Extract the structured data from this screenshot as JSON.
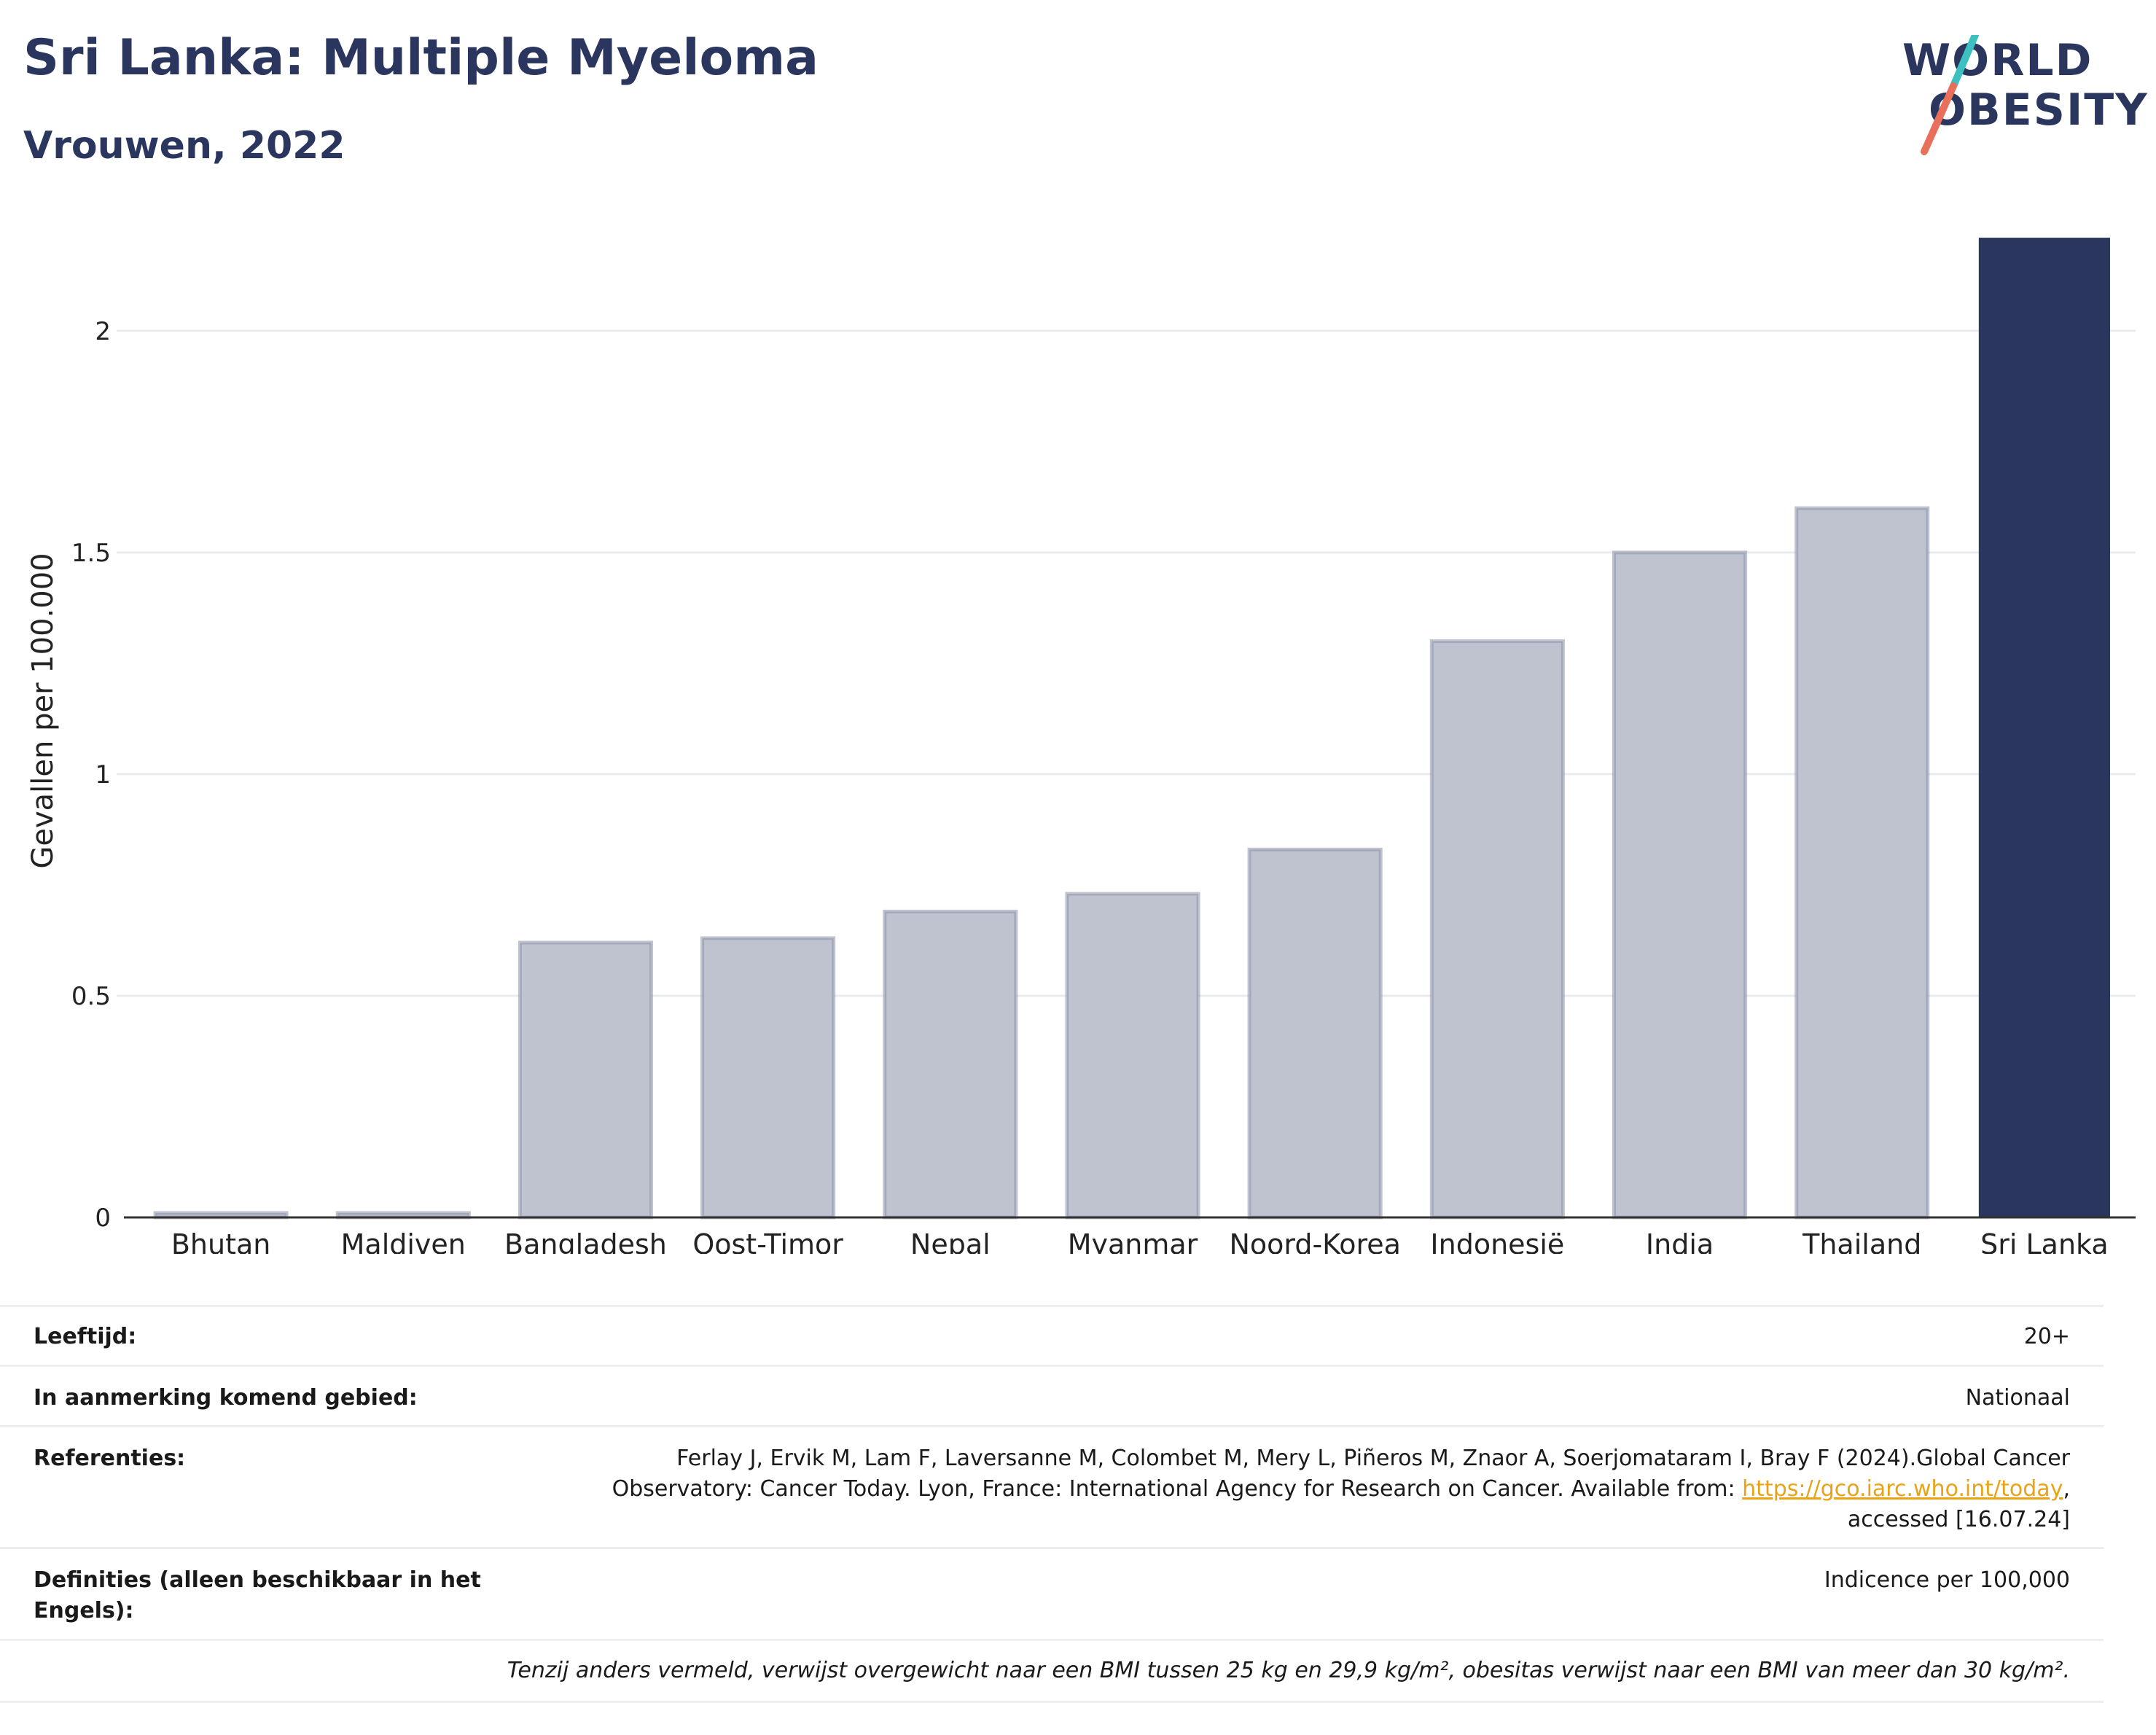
{
  "header": {
    "title": "Sri Lanka: Multiple Myeloma",
    "subtitle": "Vrouwen, 2022"
  },
  "logo": {
    "line1": "WORLD",
    "line2": "OBESITY",
    "accent_colors": [
      "#3cc0c0",
      "#e8705a"
    ]
  },
  "colors": {
    "highlight": "#2b365f",
    "other": "#bfc3d0",
    "other_border": "#8d93aa",
    "link": "#e8a317"
  },
  "chart_data": {
    "type": "bar",
    "title": "Sri Lanka: Multiple Myeloma",
    "subtitle": "Vrouwen, 2022",
    "xlabel": "",
    "ylabel": "Gevallen per 100.000",
    "ylim": [
      0,
      2.22
    ],
    "yticks": [
      0,
      0.5,
      1,
      1.5,
      2
    ],
    "ytick_labels": [
      "0",
      "0.5",
      "1",
      "1.5",
      "2"
    ],
    "grid": true,
    "categories": [
      "Bhutan",
      "Maldiven",
      "Bangladesh",
      "Oost-Timor",
      "Nepal",
      "Myanmar",
      "Noord-Korea",
      "Indonesië",
      "India",
      "Thailand",
      "Sri Lanka"
    ],
    "values": [
      0.01,
      0.01,
      0.62,
      0.63,
      0.69,
      0.73,
      0.83,
      1.3,
      1.5,
      1.6,
      2.21
    ],
    "highlight": "Sri Lanka"
  },
  "meta": {
    "age_label": "Leeftijd:",
    "age_value": "20+",
    "area_label": "In aanmerking komend gebied:",
    "area_value": "Nationaal",
    "ref_label": "Referenties:",
    "ref_line1": "Ferlay J, Ervik M, Lam F, Laversanne M, Colombet M, Mery L, Piñeros M, Znaor A, Soerjomataram I, Bray F (2024).Global Cancer",
    "ref_line2_pre": "Observatory: Cancer Today. Lyon, France: International Agency for Research on Cancer. Available from: ",
    "ref_link": "https://gco.iarc.who.int/today",
    "ref_line2_post": ",",
    "ref_line3": "accessed [16.07.24]",
    "def_label": "Definities (alleen beschikbaar in het Engels):",
    "def_value": "Indicence per 100,000",
    "footnote": "Tenzij anders vermeld, verwijst overgewicht naar een BMI tussen 25 kg en 29,9 kg/m², obesitas verwijst naar een BMI van meer dan 30 kg/m²."
  }
}
